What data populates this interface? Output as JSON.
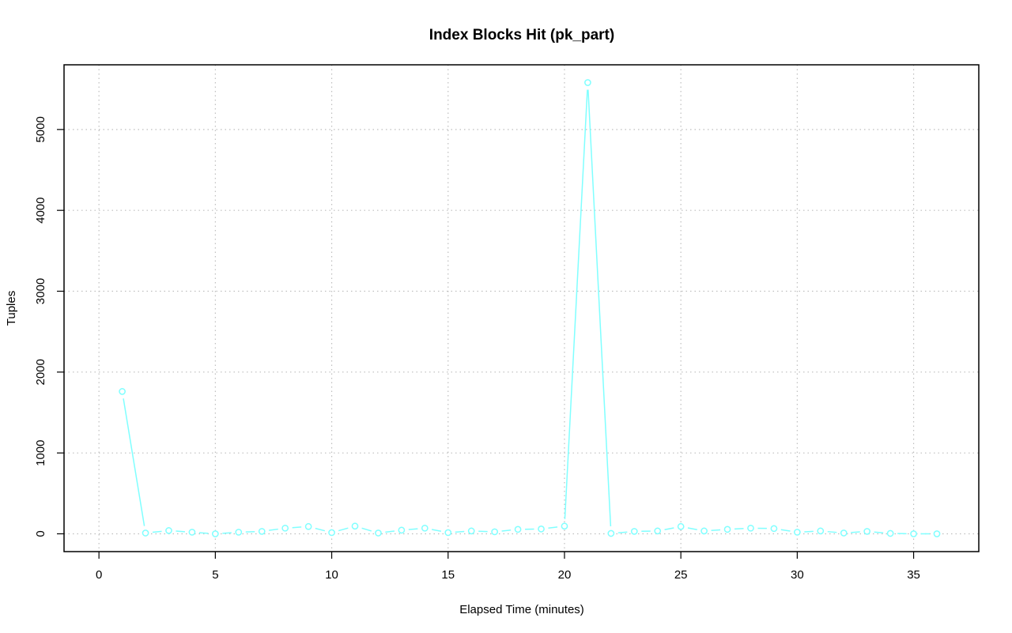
{
  "chart_data": {
    "type": "line",
    "title": "Index Blocks Hit (pk_part)",
    "xlabel": "Elapsed Time (minutes)",
    "ylabel": "Tuples",
    "xlim": [
      -1.5,
      37.8
    ],
    "ylim": [
      -220,
      5800
    ],
    "x_ticks": [
      0,
      5,
      10,
      15,
      20,
      25,
      30,
      35
    ],
    "y_ticks": [
      0,
      1000,
      2000,
      3000,
      4000,
      5000
    ],
    "grid": true,
    "legend": "none",
    "color": "#80ffff",
    "x": [
      1,
      2,
      3,
      4,
      5,
      6,
      7,
      8,
      9,
      10,
      11,
      12,
      13,
      14,
      15,
      16,
      17,
      18,
      19,
      20,
      21,
      22,
      23,
      24,
      25,
      26,
      27,
      28,
      29,
      30,
      31,
      32,
      33,
      34,
      35,
      36
    ],
    "values": [
      1760,
      10,
      40,
      20,
      0,
      20,
      30,
      70,
      90,
      15,
      95,
      10,
      45,
      70,
      15,
      35,
      25,
      55,
      60,
      95,
      5580,
      5,
      30,
      35,
      90,
      35,
      55,
      70,
      65,
      20,
      35,
      10,
      30,
      5,
      0,
      0
    ]
  }
}
